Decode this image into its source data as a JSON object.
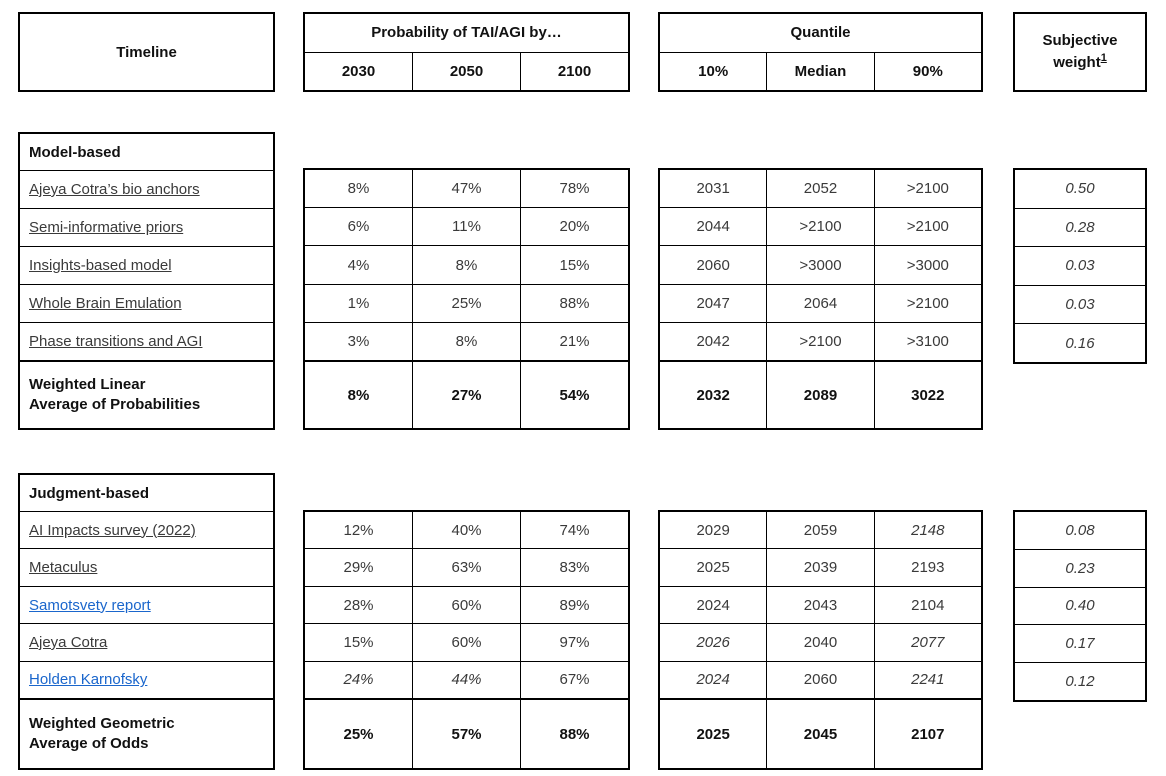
{
  "header": {
    "timeline": "Timeline",
    "probability_title": "Probability of TAI/AGI by…",
    "probability_columns": [
      "2030",
      "2050",
      "2100"
    ],
    "quantile_title": "Quantile",
    "quantile_columns": [
      "10%",
      "Median",
      "90%"
    ],
    "subjective_weight_label": "Subjective weight",
    "subjective_weight_footnote": "1"
  },
  "colors": {
    "link_blue": "#1a66cc",
    "text": "#3a3a3a",
    "bold_text": "#111111",
    "border": "#000000",
    "background": "#ffffff"
  },
  "sections": [
    {
      "title": "Model-based",
      "rows": [
        {
          "label": "Ajeya Cotra’s bio anchors",
          "link_style": "plain",
          "probs": [
            "8%",
            "47%",
            "78%"
          ],
          "probs_italic": [
            false,
            false,
            false
          ],
          "quantiles": [
            "2031",
            "2052",
            ">2100"
          ],
          "quantiles_italic": [
            false,
            false,
            false
          ],
          "weight": "0.50"
        },
        {
          "label": "Semi-informative priors",
          "link_style": "plain",
          "probs": [
            "6%",
            "11%",
            "20%"
          ],
          "probs_italic": [
            false,
            false,
            false
          ],
          "quantiles": [
            "2044",
            ">2100",
            ">2100"
          ],
          "quantiles_italic": [
            false,
            false,
            false
          ],
          "weight": "0.28"
        },
        {
          "label": "Insights-based model",
          "link_style": "plain",
          "probs": [
            "4%",
            "8%",
            "15%"
          ],
          "probs_italic": [
            false,
            false,
            false
          ],
          "quantiles": [
            "2060",
            ">3000",
            ">3000"
          ],
          "quantiles_italic": [
            false,
            false,
            false
          ],
          "weight": "0.03"
        },
        {
          "label": "Whole Brain Emulation",
          "link_style": "plain",
          "probs": [
            "1%",
            "25%",
            "88%"
          ],
          "probs_italic": [
            false,
            false,
            false
          ],
          "quantiles": [
            "2047",
            "2064",
            ">2100"
          ],
          "quantiles_italic": [
            false,
            false,
            false
          ],
          "weight": "0.03"
        },
        {
          "label": "Phase transitions and AGI",
          "link_style": "plain",
          "probs": [
            "3%",
            "8%",
            "21%"
          ],
          "probs_italic": [
            false,
            false,
            false
          ],
          "quantiles": [
            "2042",
            ">2100",
            ">3100"
          ],
          "quantiles_italic": [
            false,
            false,
            false
          ],
          "weight": "0.16"
        }
      ],
      "summary": {
        "label_lines": [
          "Weighted Linear",
          "Average of Probabilities"
        ],
        "probs": [
          "8%",
          "27%",
          "54%"
        ],
        "quantiles": [
          "2032",
          "2089",
          "3022"
        ]
      }
    },
    {
      "title": "Judgment-based",
      "rows": [
        {
          "label": "AI Impacts survey (2022)",
          "link_style": "plain",
          "probs": [
            "12%",
            "40%",
            "74%"
          ],
          "probs_italic": [
            false,
            false,
            false
          ],
          "quantiles": [
            "2029",
            "2059",
            "2148"
          ],
          "quantiles_italic": [
            false,
            false,
            true
          ],
          "weight": "0.08"
        },
        {
          "label": "Metaculus",
          "link_style": "plain",
          "probs": [
            "29%",
            "63%",
            "83%"
          ],
          "probs_italic": [
            false,
            false,
            false
          ],
          "quantiles": [
            "2025",
            "2039",
            "2193"
          ],
          "quantiles_italic": [
            false,
            false,
            false
          ],
          "weight": "0.23"
        },
        {
          "label": "Samotsvety report",
          "link_style": "blue",
          "probs": [
            "28%",
            "60%",
            "89%"
          ],
          "probs_italic": [
            false,
            false,
            false
          ],
          "quantiles": [
            "2024",
            "2043",
            "2104"
          ],
          "quantiles_italic": [
            false,
            false,
            false
          ],
          "weight": "0.40"
        },
        {
          "label": "Ajeya Cotra",
          "link_style": "plain",
          "probs": [
            "15%",
            "60%",
            "97%"
          ],
          "probs_italic": [
            false,
            false,
            false
          ],
          "quantiles": [
            "2026",
            "2040",
            "2077"
          ],
          "quantiles_italic": [
            true,
            false,
            true
          ],
          "weight": "0.17"
        },
        {
          "label": "Holden Karnofsky",
          "link_style": "blue",
          "probs": [
            "24%",
            "44%",
            "67%"
          ],
          "probs_italic": [
            true,
            true,
            false
          ],
          "quantiles": [
            "2024",
            "2060",
            "2241"
          ],
          "quantiles_italic": [
            true,
            false,
            true
          ],
          "weight": "0.12"
        }
      ],
      "summary": {
        "label_lines": [
          "Weighted Geometric",
          "Average of Odds"
        ],
        "probs": [
          "25%",
          "57%",
          "88%"
        ],
        "quantiles": [
          "2025",
          "2045",
          "2107"
        ]
      }
    }
  ]
}
